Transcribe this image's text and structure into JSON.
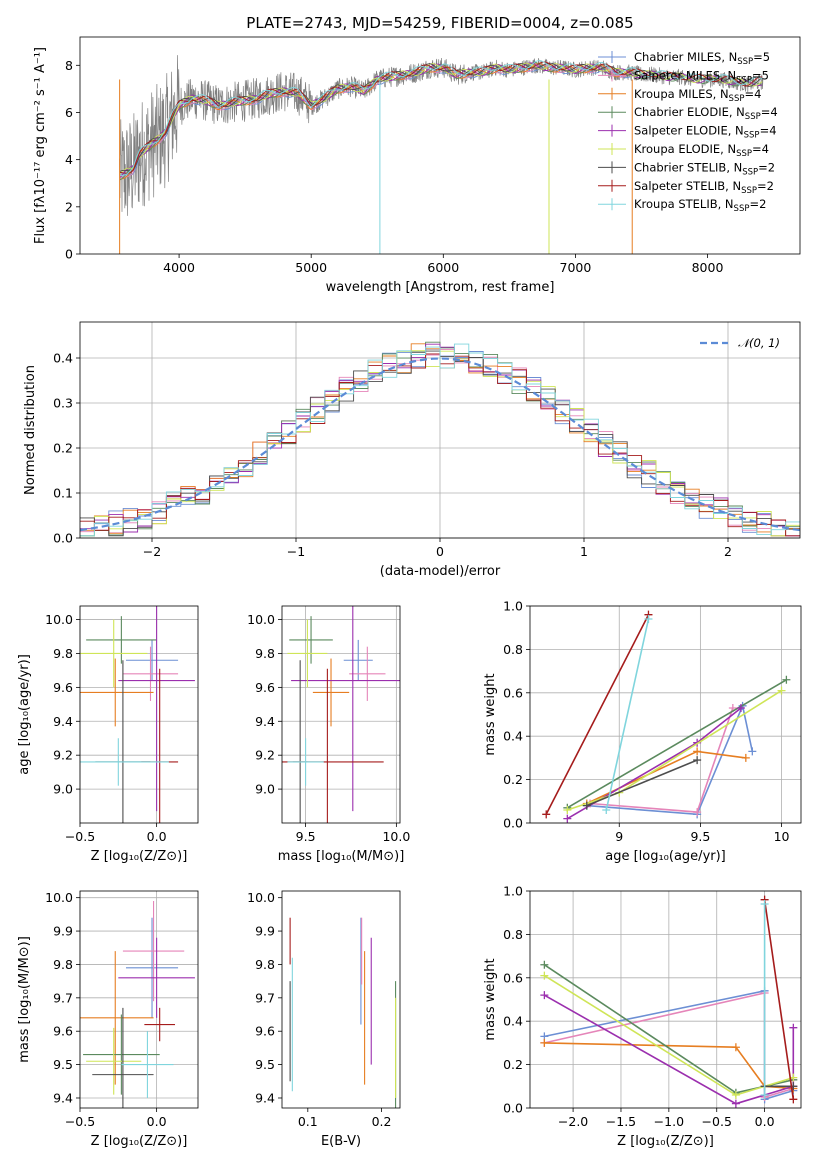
{
  "colors": [
    "#6c8fd4",
    "#e585b9",
    "#e67e22",
    "#5b8a5e",
    "#9b2fae",
    "#cfe557",
    "#4d4d4d",
    "#a51c1c",
    "#80d5dd"
  ],
  "spectrum_color": "#808080",
  "chart_data": [
    {
      "id": "spectrum",
      "type": "line",
      "title": "PLATE=2743, MJD=54259, FIBERID=0004, z=0.085",
      "xlabel": "wavelength [Angstrom, rest frame]",
      "ylabel": "Flux [fλ10⁻¹⁷ erg cm⁻² s⁻¹ A⁻¹]",
      "xlim": [
        3250,
        8700
      ],
      "ylim": [
        0,
        9.2
      ],
      "xticks": [
        4000,
        5000,
        6000,
        7000,
        8000
      ],
      "yticks": [
        0,
        2,
        4,
        6,
        8
      ],
      "grid": false,
      "legend_placement": "right",
      "legend": [
        {
          "base": "Chabrier MILES, N",
          "sub": "SSP",
          "tail": "=5"
        },
        {
          "base": "Salpeter MILES, N",
          "sub": "SSP",
          "tail": "=5"
        },
        {
          "base": "Kroupa MILES, N",
          "sub": "SSP",
          "tail": "=4"
        },
        {
          "base": "Chabrier ELODIE, N",
          "sub": "SSP",
          "tail": "=4"
        },
        {
          "base": "Salpeter ELODIE, N",
          "sub": "SSP",
          "tail": "=4"
        },
        {
          "base": "Kroupa ELODIE, N",
          "sub": "SSP",
          "tail": "=4"
        },
        {
          "base": "Chabrier STELIB, N",
          "sub": "SSP",
          "tail": "=2"
        },
        {
          "base": "Salpeter STELIB, N",
          "sub": "SSP",
          "tail": "=2"
        },
        {
          "base": "Kroupa STELIB, N",
          "sub": "SSP",
          "tail": "=2"
        }
      ],
      "continuum": {
        "x": [
          3550,
          3650,
          3700,
          3800,
          3850,
          3900,
          3950,
          4000,
          4100,
          4200,
          4300,
          4400,
          4500,
          4600,
          4700,
          4800,
          4900,
          5000,
          5100,
          5200,
          5300,
          5400,
          5500,
          5600,
          5700,
          5800,
          5900,
          6000,
          6100,
          6200,
          6300,
          6400,
          6500,
          6600,
          6700,
          6800,
          6900,
          7000,
          7100,
          7200,
          7300,
          7400,
          7500,
          7600,
          7700,
          7800,
          7900,
          8000,
          8100,
          8200,
          8300,
          8400
        ],
        "y": [
          3.3,
          3.6,
          4.2,
          4.7,
          4.9,
          5.2,
          5.8,
          6.3,
          6.6,
          6.5,
          6.3,
          6.4,
          6.5,
          6.6,
          6.8,
          6.9,
          6.8,
          6.3,
          6.6,
          7.0,
          7.1,
          6.9,
          7.4,
          7.5,
          7.6,
          7.7,
          7.9,
          7.9,
          7.6,
          7.7,
          7.7,
          7.9,
          7.8,
          7.9,
          8.0,
          7.9,
          7.9,
          7.8,
          7.9,
          7.9,
          7.7,
          7.7,
          7.6,
          7.6,
          7.5,
          7.5,
          7.4,
          7.4,
          7.4,
          7.3,
          7.2,
          7.3
        ]
      }
    },
    {
      "id": "residuals",
      "type": "line",
      "xlabel": "(data-model)/error",
      "ylabel": "Normed distribution",
      "xlim": [
        -2.5,
        2.5
      ],
      "ylim": [
        0,
        0.48
      ],
      "xticks": [
        -2,
        -1,
        0,
        1,
        2
      ],
      "yticks": [
        0.0,
        0.1,
        0.2,
        0.3,
        0.4
      ],
      "grid": true,
      "legend_placement": "top-right",
      "legend_label": "𝒩(0, 1)",
      "gauss_color": "#5b8bd6"
    },
    {
      "id": "age_vs_Z",
      "type": "scatter",
      "xlabel": "Z [log₁₀(Z/Z⊙)]",
      "ylabel": "age  [log₁₀(age/yr)]",
      "xlim": [
        -0.5,
        0.27
      ],
      "ylim": [
        8.8,
        10.08
      ],
      "xticks": [
        -0.5,
        0.0
      ],
      "xtick_labels": [
        "−0.5",
        "0.0"
      ],
      "yticks": [
        9.0,
        9.2,
        9.4,
        9.6,
        9.8,
        10.0
      ],
      "grid": true,
      "points": [
        {
          "s": 0,
          "x": -0.03,
          "y": 9.76,
          "xerr": 0.17,
          "yerr": 0.12
        },
        {
          "s": 1,
          "x": -0.04,
          "y": 9.68,
          "xerr": 0.18,
          "yerr": 0.16
        },
        {
          "s": 2,
          "x": -0.27,
          "y": 9.57,
          "xerr": 0.25,
          "yerr": 0.2
        },
        {
          "s": 3,
          "x": -0.23,
          "y": 9.88,
          "xerr": 0.23,
          "yerr": 0.14
        },
        {
          "s": 4,
          "x": 0.0,
          "y": 9.64,
          "xerr": 0.25,
          "yerr": 0.77
        },
        {
          "s": 5,
          "x": -0.28,
          "y": 9.8,
          "xerr": 0.22,
          "yerr": 0.2
        },
        {
          "s": 6,
          "x": -0.22,
          "y": 9.16,
          "xerr": 0.18,
          "yerr": 0.6
        },
        {
          "s": 7,
          "x": 0.02,
          "y": 9.16,
          "xerr": 0.12,
          "yerr": 0.55
        },
        {
          "s": 8,
          "x": -0.25,
          "y": 9.16,
          "xerr": 0.33,
          "yerr": 0.14
        }
      ]
    },
    {
      "id": "age_vs_mass",
      "type": "scatter",
      "xlabel": "mass [log₁₀(M/M⊙)]",
      "xlim": [
        9.37,
        10.02
      ],
      "ylim": [
        8.8,
        10.08
      ],
      "xticks": [
        9.5,
        10.0
      ],
      "xtick_labels": [
        "9.5",
        "10.0"
      ],
      "yticks": [
        9.0,
        9.2,
        9.4,
        9.6,
        9.8,
        10.0
      ],
      "grid": true,
      "points": [
        {
          "s": 0,
          "x": 9.79,
          "y": 9.76,
          "xerr": 0.08,
          "yerr": 0.12
        },
        {
          "s": 1,
          "x": 9.84,
          "y": 9.68,
          "xerr": 0.1,
          "yerr": 0.16
        },
        {
          "s": 2,
          "x": 9.64,
          "y": 9.57,
          "xerr": 0.1,
          "yerr": 0.2
        },
        {
          "s": 3,
          "x": 9.53,
          "y": 9.88,
          "xerr": 0.12,
          "yerr": 0.14
        },
        {
          "s": 4,
          "x": 9.76,
          "y": 9.64,
          "xerr": 0.34,
          "yerr": 0.77
        },
        {
          "s": 5,
          "x": 9.51,
          "y": 9.8,
          "xerr": 0.11,
          "yerr": 0.2
        },
        {
          "s": 6,
          "x": 9.47,
          "y": 9.16,
          "xerr": 0.04,
          "yerr": 0.6
        },
        {
          "s": 7,
          "x": 9.62,
          "y": 9.16,
          "xerr": 0.31,
          "yerr": 0.55
        },
        {
          "s": 8,
          "x": 9.5,
          "y": 9.16,
          "xerr": 0.1,
          "yerr": 0.14
        }
      ]
    },
    {
      "id": "weight_vs_age",
      "type": "line",
      "xlabel": "age  [log₁₀(age/yr)]",
      "ylabel": "mass weight",
      "xlim": [
        8.45,
        10.12
      ],
      "ylim": [
        0,
        1.0
      ],
      "xticks": [
        9.0,
        9.5,
        10.0
      ],
      "yticks": [
        0.0,
        0.2,
        0.4,
        0.6,
        0.8,
        1.0
      ],
      "grid": true,
      "series": [
        {
          "s": 0,
          "points": [
            [
              8.8,
              0.08
            ],
            [
              9.48,
              0.04
            ],
            [
              9.76,
              0.54
            ],
            [
              9.82,
              0.33
            ]
          ]
        },
        {
          "s": 1,
          "points": [
            [
              8.82,
              0.09
            ],
            [
              9.48,
              0.05
            ],
            [
              9.7,
              0.53
            ]
          ]
        },
        {
          "s": 2,
          "points": [
            [
              8.8,
              0.09
            ],
            [
              9.48,
              0.33
            ],
            [
              9.78,
              0.3
            ]
          ]
        },
        {
          "s": 3,
          "points": [
            [
              8.68,
              0.07
            ],
            [
              10.03,
              0.66
            ]
          ]
        },
        {
          "s": 4,
          "points": [
            [
              8.68,
              0.02
            ],
            [
              9.48,
              0.37
            ],
            [
              9.75,
              0.53
            ]
          ]
        },
        {
          "s": 5,
          "points": [
            [
              8.68,
              0.06
            ],
            [
              9.0,
              0.14
            ],
            [
              10.0,
              0.61
            ]
          ]
        },
        {
          "s": 6,
          "points": [
            [
              8.8,
              0.08
            ],
            [
              9.48,
              0.29
            ]
          ]
        },
        {
          "s": 7,
          "points": [
            [
              8.55,
              0.04
            ],
            [
              9.18,
              0.96
            ]
          ]
        },
        {
          "s": 8,
          "points": [
            [
              8.92,
              0.06
            ],
            [
              9.18,
              0.94
            ]
          ]
        }
      ]
    },
    {
      "id": "mass_vs_Z",
      "type": "scatter",
      "xlabel": "Z [log₁₀(Z/Z⊙)]",
      "ylabel": "mass [log₁₀(M/M⊙)]",
      "xlim": [
        -0.5,
        0.27
      ],
      "ylim": [
        9.37,
        10.02
      ],
      "xticks": [
        -0.5,
        0.0
      ],
      "xtick_labels": [
        "−0.5",
        "0.0"
      ],
      "yticks": [
        9.4,
        9.5,
        9.6,
        9.7,
        9.8,
        9.9,
        10.0
      ],
      "grid": true,
      "points": [
        {
          "s": 0,
          "x": -0.03,
          "y": 9.79,
          "xerr": 0.17,
          "yerr": 0.15
        },
        {
          "s": 1,
          "x": -0.02,
          "y": 9.84,
          "xerr": 0.2,
          "yerr": 0.15
        },
        {
          "s": 2,
          "x": -0.27,
          "y": 9.64,
          "xerr": 0.25,
          "yerr": 0.2
        },
        {
          "s": 3,
          "x": -0.23,
          "y": 9.53,
          "xerr": 0.25,
          "yerr": 0.12
        },
        {
          "s": 4,
          "x": 0.0,
          "y": 9.76,
          "xerr": 0.25,
          "yerr": 0.12
        },
        {
          "s": 5,
          "x": -0.28,
          "y": 9.51,
          "xerr": 0.18,
          "yerr": 0.1
        },
        {
          "s": 6,
          "x": -0.22,
          "y": 9.47,
          "xerr": 0.2,
          "yerr": 0.2
        },
        {
          "s": 7,
          "x": 0.02,
          "y": 9.62,
          "xerr": 0.1,
          "yerr": 0.05
        },
        {
          "s": 8,
          "x": -0.06,
          "y": 9.5,
          "xerr": 0.17,
          "yerr": 0.1
        }
      ]
    },
    {
      "id": "mass_vs_ebv",
      "type": "scatter",
      "xlabel": "E(B-V)",
      "xlim": [
        0.065,
        0.225
      ],
      "ylim": [
        9.37,
        10.02
      ],
      "xticks": [
        0.1,
        0.2
      ],
      "xtick_labels": [
        "0.1",
        "0.2"
      ],
      "yticks": [
        9.4,
        9.5,
        9.6,
        9.7,
        9.8,
        9.9,
        10.0
      ],
      "grid": false,
      "points": [
        {
          "s": 0,
          "x": 0.172,
          "y": 9.78,
          "yerr": 0.16
        },
        {
          "s": 1,
          "x": 0.173,
          "y": 9.84,
          "yerr": 0.1
        },
        {
          "s": 2,
          "x": 0.177,
          "y": 9.64,
          "yerr": 0.2
        },
        {
          "s": 3,
          "x": 0.219,
          "y": 9.5,
          "yerr": 0.25
        },
        {
          "s": 4,
          "x": 0.186,
          "y": 9.69,
          "yerr": 0.19
        },
        {
          "s": 5,
          "x": 0.219,
          "y": 9.55,
          "yerr": 0.15
        },
        {
          "s": 6,
          "x": 0.076,
          "y": 9.6,
          "yerr": 0.15
        },
        {
          "s": 7,
          "x": 0.076,
          "y": 9.87,
          "yerr": 0.07
        },
        {
          "s": 8,
          "x": 0.079,
          "y": 9.62,
          "yerr": 0.2
        }
      ]
    },
    {
      "id": "weight_vs_Z",
      "type": "line",
      "xlabel": "Z [log₁₀(Z/Z⊙)]",
      "ylabel": "mass weight",
      "xlim": [
        -2.45,
        0.38
      ],
      "ylim": [
        0,
        1.0
      ],
      "xticks": [
        -2.0,
        -1.5,
        -1.0,
        -0.5,
        0.0
      ],
      "xtick_labels": [
        "−2.0",
        "−1.5",
        "−1.0",
        "−0.5",
        "0.0"
      ],
      "yticks": [
        0.0,
        0.2,
        0.4,
        0.6,
        0.8,
        1.0
      ],
      "grid": true,
      "series": [
        {
          "s": 0,
          "points": [
            [
              -2.3,
              0.33
            ],
            [
              0.0,
              0.54
            ],
            [
              0.0,
              0.04
            ],
            [
              0.3,
              0.08
            ]
          ]
        },
        {
          "s": 1,
          "points": [
            [
              -2.3,
              0.3
            ],
            [
              0.0,
              0.53
            ],
            [
              0.0,
              0.05
            ],
            [
              0.3,
              0.09
            ]
          ]
        },
        {
          "s": 2,
          "points": [
            [
              -2.3,
              0.3
            ],
            [
              -0.3,
              0.28
            ],
            [
              0.0,
              0.1
            ],
            [
              0.3,
              0.09
            ]
          ]
        },
        {
          "s": 3,
          "points": [
            [
              -2.3,
              0.66
            ],
            [
              -0.3,
              0.07
            ],
            [
              0.3,
              0.13
            ]
          ]
        },
        {
          "s": 4,
          "points": [
            [
              -2.3,
              0.52
            ],
            [
              -0.3,
              0.02
            ],
            [
              0.3,
              0.1
            ],
            [
              0.3,
              0.37
            ]
          ]
        },
        {
          "s": 5,
          "points": [
            [
              -2.3,
              0.61
            ],
            [
              -0.3,
              0.06
            ],
            [
              0.3,
              0.14
            ]
          ]
        },
        {
          "s": 6,
          "points": [
            [
              0.0,
              0.1
            ],
            [
              0.3,
              0.1
            ]
          ]
        },
        {
          "s": 7,
          "points": [
            [
              0.0,
              0.96
            ],
            [
              0.3,
              0.04
            ]
          ]
        },
        {
          "s": 8,
          "points": [
            [
              0.0,
              0.94
            ],
            [
              0.0,
              0.06
            ]
          ]
        }
      ]
    }
  ]
}
